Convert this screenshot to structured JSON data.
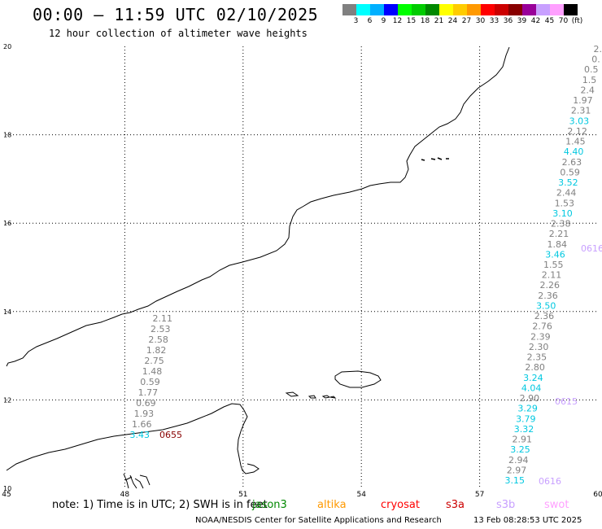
{
  "header": {
    "title": "00:00 – 11:59 UTC 02/10/2025",
    "subtitle": "12 hour collection of altimeter wave heights"
  },
  "colorbar": {
    "colors": [
      "#808080",
      "#00ffff",
      "#00b0ff",
      "#0000ff",
      "#00ff00",
      "#00cc00",
      "#008800",
      "#ffff00",
      "#ffcc00",
      "#ff9900",
      "#ff0000",
      "#cc0000",
      "#880000",
      "#990099",
      "#c8a0ff",
      "#ffa0ff",
      "#000000"
    ],
    "labels": [
      "3",
      "6",
      "9",
      "12",
      "15",
      "18",
      "21",
      "24",
      "27",
      "30",
      "33",
      "36",
      "39",
      "42",
      "45",
      "70",
      "(ft)"
    ]
  },
  "axes": {
    "lat_labels": [
      "20",
      "18",
      "16",
      "14",
      "12",
      "10"
    ],
    "lon_labels": [
      "45",
      "48",
      "51",
      "54",
      "57",
      "60"
    ]
  },
  "tracks": [
    {
      "name": "track-east",
      "values": [
        {
          "t": "2.",
          "c": "#808080"
        },
        {
          "t": "0.",
          "c": "#808080"
        },
        {
          "t": "0.5",
          "c": "#808080"
        },
        {
          "t": "1.5",
          "c": "#808080"
        },
        {
          "t": "2.4",
          "c": "#808080"
        },
        {
          "t": "1.97",
          "c": "#808080"
        },
        {
          "t": "2.31",
          "c": "#808080"
        },
        {
          "t": "3.03",
          "c": "#00c8e0"
        },
        {
          "t": "2.12",
          "c": "#808080"
        },
        {
          "t": "1.45",
          "c": "#808080"
        },
        {
          "t": "4.40",
          "c": "#00c8e0"
        },
        {
          "t": "2.63",
          "c": "#808080"
        },
        {
          "t": "0.59",
          "c": "#808080"
        },
        {
          "t": "3.52",
          "c": "#00c8e0"
        },
        {
          "t": "2.44",
          "c": "#808080"
        },
        {
          "t": "1.53",
          "c": "#808080"
        },
        {
          "t": "3.10",
          "c": "#00c8e0"
        },
        {
          "t": "2.38",
          "c": "#808080"
        },
        {
          "t": "2.21",
          "c": "#808080"
        },
        {
          "t": "1.84",
          "c": "#808080"
        },
        {
          "t": "3.46",
          "c": "#00c8e0"
        },
        {
          "t": "1.55",
          "c": "#808080"
        },
        {
          "t": "2.11",
          "c": "#808080"
        },
        {
          "t": "2.26",
          "c": "#808080"
        },
        {
          "t": "2.36",
          "c": "#808080"
        },
        {
          "t": "3.50",
          "c": "#00c8e0"
        },
        {
          "t": "2.36",
          "c": "#808080"
        },
        {
          "t": "2.76",
          "c": "#808080"
        },
        {
          "t": "2.39",
          "c": "#808080"
        },
        {
          "t": "2.30",
          "c": "#808080"
        },
        {
          "t": "2.35",
          "c": "#808080"
        },
        {
          "t": "2.80",
          "c": "#808080"
        },
        {
          "t": "3.24",
          "c": "#00c8e0"
        },
        {
          "t": "4.04",
          "c": "#00c8e0"
        },
        {
          "t": "2.90",
          "c": "#808080"
        },
        {
          "t": "3.29",
          "c": "#00c8e0"
        },
        {
          "t": "3.79",
          "c": "#00c8e0"
        },
        {
          "t": "3.32",
          "c": "#00c8e0"
        },
        {
          "t": "2.91",
          "c": "#808080"
        },
        {
          "t": "3.25",
          "c": "#00c8e0"
        },
        {
          "t": "2.94",
          "c": "#808080"
        },
        {
          "t": "2.97",
          "c": "#808080"
        },
        {
          "t": "3.15",
          "c": "#00c8e0"
        }
      ]
    },
    {
      "name": "track-west",
      "values": [
        {
          "t": "2.11",
          "c": "#808080"
        },
        {
          "t": "2.53",
          "c": "#808080"
        },
        {
          "t": "2.58",
          "c": "#808080"
        },
        {
          "t": "1.82",
          "c": "#808080"
        },
        {
          "t": "2.75",
          "c": "#808080"
        },
        {
          "t": "1.48",
          "c": "#808080"
        },
        {
          "t": "0.59",
          "c": "#808080"
        },
        {
          "t": "1.77",
          "c": "#808080"
        },
        {
          "t": "0.69",
          "c": "#808080"
        },
        {
          "t": "1.93",
          "c": "#808080"
        },
        {
          "t": "1.66",
          "c": "#808080"
        },
        {
          "t": "3.43",
          "c": "#00c8e0"
        }
      ]
    }
  ],
  "time_tags": [
    {
      "t": "0616",
      "c": "#c8a0ff"
    },
    {
      "t": "0615",
      "c": "#c8a0ff"
    },
    {
      "t": "0616",
      "c": "#c8a0ff"
    },
    {
      "t": "0655",
      "c": "#880000"
    }
  ],
  "footer": {
    "note": "note:  1) Time is in UTC;  2) SWH is in feet",
    "satellites": [
      {
        "name": "jason3",
        "color": "#008800"
      },
      {
        "name": "altika",
        "color": "#ff9900"
      },
      {
        "name": "cryosat",
        "color": "#ff0000"
      },
      {
        "name": "s3a",
        "color": "#cc0000"
      },
      {
        "name": "s3b",
        "color": "#c8a0ff"
      },
      {
        "name": "swot",
        "color": "#ffa0ff"
      }
    ],
    "credit": "NOAA/NESDIS Center for Satellite Applications and Research",
    "timestamp": "13 Feb 08:28:53 UTC 2025"
  }
}
